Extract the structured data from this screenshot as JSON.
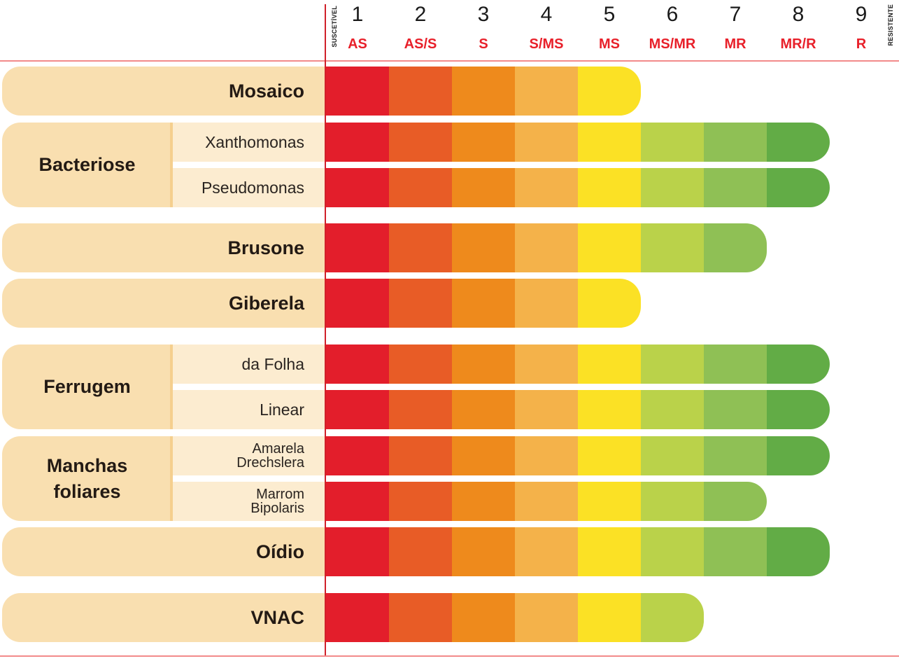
{
  "chart_data": {
    "type": "table",
    "title": "",
    "scale": {
      "levels": [
        1,
        2,
        3,
        4,
        5,
        6,
        7,
        8,
        9
      ],
      "codes": [
        "AS",
        "AS/S",
        "S",
        "S/MS",
        "MS",
        "MS/MR",
        "MR",
        "MR/R",
        "R"
      ],
      "low_label": "SUSCETÍVEL",
      "high_label": "RESISTENTE"
    },
    "segment_colors": [
      "#e31e2b",
      "#e85c26",
      "#ee8a1c",
      "#f4b24a",
      "#fbe125",
      "#bad24a",
      "#8fc055",
      "#62ac46",
      "#3e8f3a"
    ],
    "label_bg": "#f9dfb0",
    "sub_label_bg": "#fcecd0",
    "rows": [
      {
        "group": "",
        "disease": "Mosaico",
        "value": 5
      },
      {
        "group": "Bacteriose",
        "disease": "Xanthomonas",
        "value": 8
      },
      {
        "group": "Bacteriose",
        "disease": "Pseudomonas",
        "value": 8
      },
      {
        "group": "",
        "disease": "Brusone",
        "value": 7
      },
      {
        "group": "",
        "disease": "Giberela",
        "value": 5
      },
      {
        "group": "Ferrugem",
        "disease": "da Folha",
        "value": 8
      },
      {
        "group": "Ferrugem",
        "disease": "Linear",
        "value": 8
      },
      {
        "group": "Manchas foliares",
        "disease": "Amarela Drechslera",
        "value": 8
      },
      {
        "group": "Manchas foliares",
        "disease": "Marrom Bipolaris",
        "value": 7
      },
      {
        "group": "",
        "disease": "Oídio",
        "value": 8
      },
      {
        "group": "",
        "disease": "VNAC",
        "value": 6
      }
    ],
    "groups": {
      "Bacteriose": {
        "label": "Bacteriose",
        "subs": [
          "Xanthomonas",
          "Pseudomonas"
        ]
      },
      "Ferrugem": {
        "label": "Ferrugem",
        "subs": [
          "da Folha",
          "Linear"
        ]
      },
      "Manchas foliares": {
        "label_lines": [
          "Manchas",
          "foliares"
        ],
        "subs": [
          [
            "Amarela",
            "Drechslera"
          ],
          [
            "Marrom",
            "Bipolaris"
          ]
        ]
      }
    }
  }
}
